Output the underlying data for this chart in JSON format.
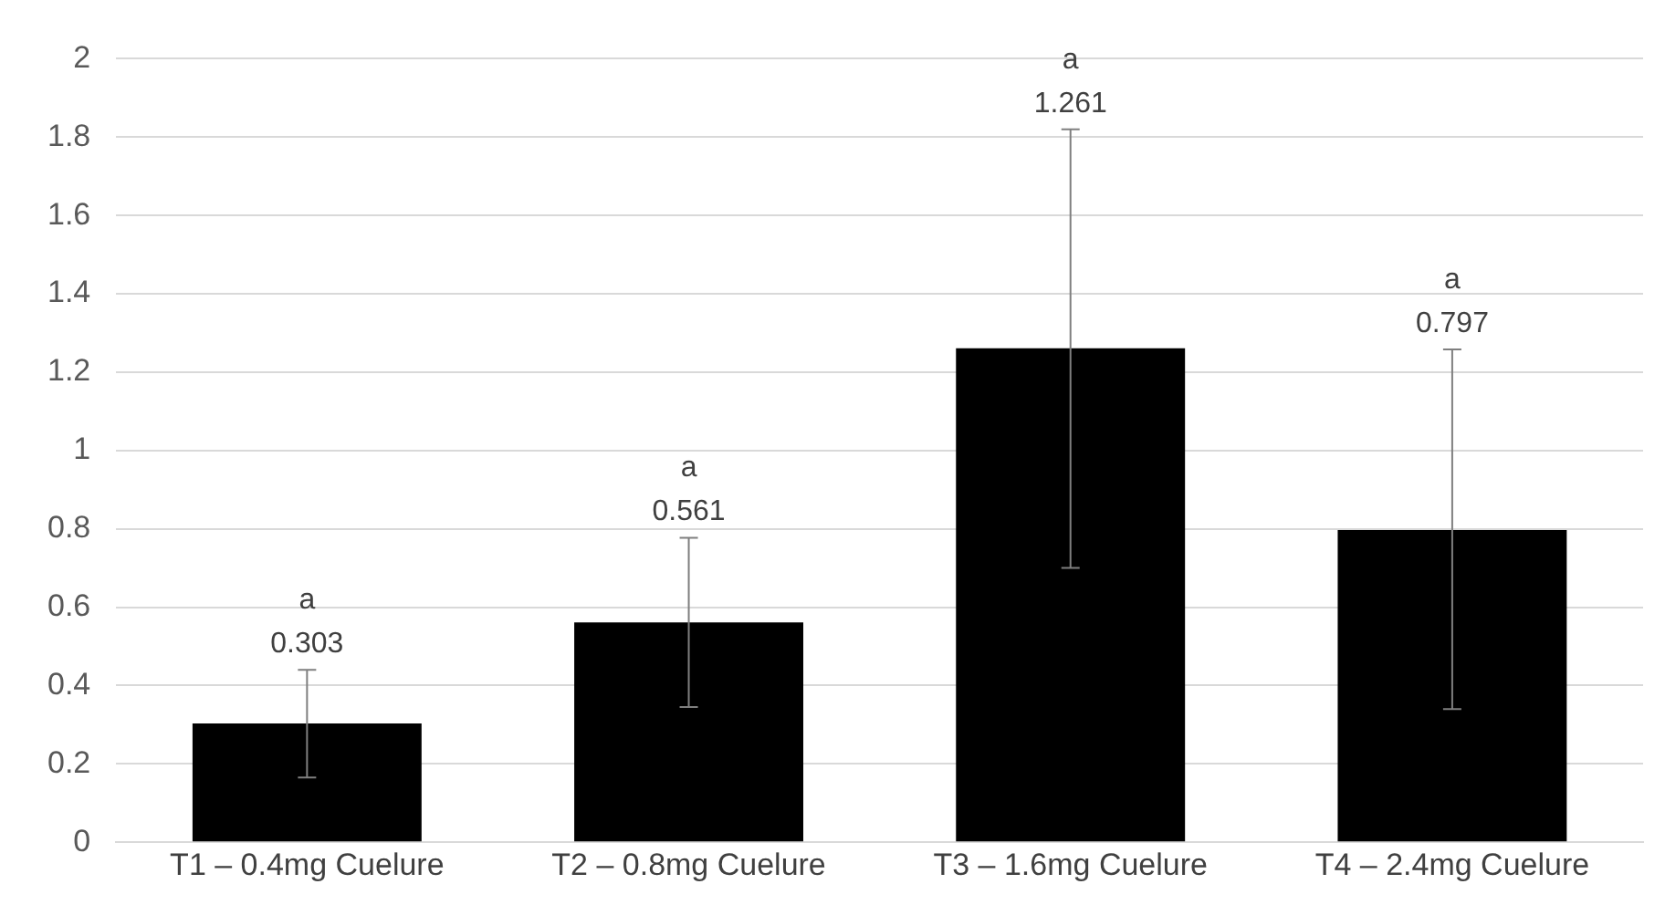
{
  "chart_data": {
    "type": "bar",
    "categories": [
      "T1 – 0.4mg Cuelure",
      "T2 – 0.8mg Cuelure",
      "T3 – 1.6mg Cuelure",
      "T4 – 2.4mg Cuelure"
    ],
    "values": [
      0.303,
      0.561,
      1.261,
      0.797
    ],
    "errors": [
      [
        0.165,
        0.44
      ],
      [
        0.345,
        0.777
      ],
      [
        0.7,
        1.82
      ],
      [
        0.34,
        1.258
      ]
    ],
    "color": "#000000",
    "annotations": [
      {
        "text": "0.303",
        "x": "T1 – 0.4mg Cuelure",
        "y": 0.44
      },
      {
        "text": "0.561",
        "x": "T2 – 0.8mg Cuelure",
        "y": 0.777
      },
      {
        "text": "1.261",
        "x": "T3 – 1.6mg Cuelure",
        "y": 1.82
      },
      {
        "text": "0.797",
        "x": "T4 – 2.4mg Cuelure",
        "y": 1.258
      },
      {
        "text": "a",
        "x": "T1 – 0.4mg Cuelure",
        "y": 0.44
      },
      {
        "text": "a",
        "x": "T2 – 0.8mg Cuelure",
        "y": 0.777
      },
      {
        "text": "a",
        "x": "T3 – 1.6mg Cuelure",
        "y": 1.82
      },
      {
        "text": "a",
        "x": "T4 – 2.4mg Cuelure",
        "y": 1.258
      }
    ],
    "ylim": [
      0,
      2
    ],
    "yticks": [
      0,
      0.2,
      0.4,
      0.6,
      0.8,
      1,
      1.2,
      1.4,
      1.6,
      1.8,
      2
    ],
    "grid": "y",
    "legend": false
  }
}
